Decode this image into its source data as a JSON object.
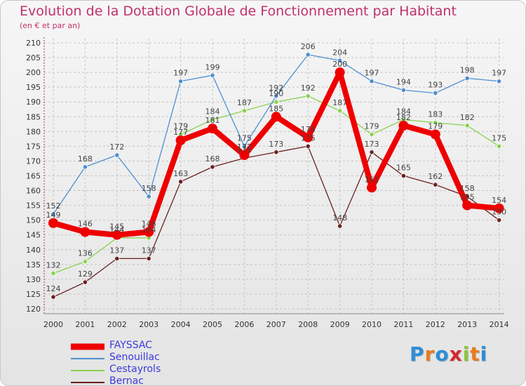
{
  "chart_data": {
    "type": "line",
    "title": "Evolution de la Dotation Globale de Fonctionnement par Habitant",
    "subtitle": "(en € et par an)",
    "categories": [
      "2000",
      "2001",
      "2002",
      "2003",
      "2004",
      "2005",
      "2006",
      "2007",
      "2008",
      "2009",
      "2010",
      "2011",
      "2012",
      "2013",
      "2014"
    ],
    "ylim": [
      120,
      210
    ],
    "yticks": [
      120,
      125,
      130,
      135,
      140,
      145,
      150,
      155,
      160,
      165,
      170,
      175,
      180,
      185,
      190,
      195,
      200,
      205,
      210
    ],
    "grid": true,
    "legend_position": "bottom-left",
    "series": [
      {
        "name": "FAYSSAC",
        "color": "#ee0000",
        "values": [
          149,
          146,
          145,
          146,
          177,
          181,
          172,
          185,
          178,
          200,
          161,
          182,
          179,
          155,
          154
        ],
        "labels": [
          "149",
          "146",
          "145",
          "146",
          "177",
          "181",
          "172",
          "185",
          "178",
          "200",
          "161",
          "182",
          "179",
          "155",
          "154"
        ]
      },
      {
        "name": "Senouillac",
        "color": "#4d8fd0",
        "values": [
          152,
          168,
          172,
          158,
          197,
          199,
          175,
          192,
          206,
          204,
          197,
          194,
          193,
          198,
          197
        ],
        "labels": [
          "152",
          "168",
          "172",
          "158",
          "197",
          "199",
          "175",
          "192",
          "206",
          "204",
          "197",
          "194",
          "193",
          "198",
          "197"
        ]
      },
      {
        "name": "Cestayrols",
        "color": "#88d24e",
        "values": [
          132,
          136,
          144,
          144,
          179,
          184,
          187,
          190,
          192,
          187,
          179,
          184,
          183,
          182,
          175
        ],
        "labels": [
          "132",
          "136",
          "144",
          "144",
          "179",
          "184",
          "187",
          "190",
          "192",
          "187",
          "179",
          "184",
          "183",
          "182",
          "175"
        ]
      },
      {
        "name": "Bernac",
        "color": "#6b2020",
        "values": [
          124,
          129,
          137,
          137,
          163,
          168,
          171,
          173,
          175,
          148,
          173,
          165,
          162,
          158,
          150
        ],
        "labels": [
          "124",
          "129",
          "137",
          "137",
          "163",
          "168",
          "171",
          "173",
          "175",
          "148",
          "173",
          "165",
          "162",
          "158",
          "150"
        ]
      }
    ]
  },
  "branding": {
    "logo_letters": [
      "P",
      "r",
      "o",
      "x",
      "i",
      "t",
      "i"
    ],
    "logo_colors": [
      "#2b8ed8",
      "#e87b1e",
      "#2b8ed8",
      "#d8262e",
      "#8cc63f",
      "#e87b1e",
      "#2b8ed8"
    ]
  }
}
